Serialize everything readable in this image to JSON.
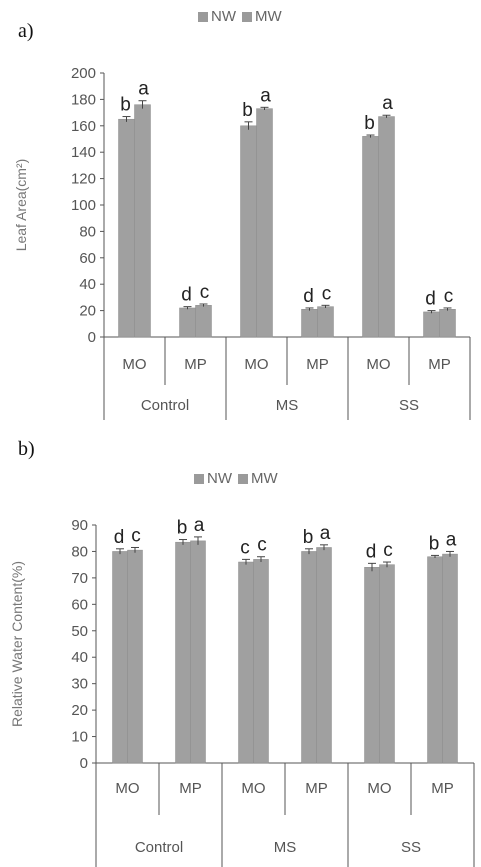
{
  "chart_data": [
    {
      "panel_label": "a)",
      "type": "bar",
      "ylabel": "Leaf Area(cm²)",
      "ylim": [
        0,
        200
      ],
      "yticks": [
        0,
        20,
        40,
        60,
        80,
        100,
        120,
        140,
        160,
        180,
        200
      ],
      "categories": [
        "MO",
        "MP",
        "MO",
        "MP",
        "MO",
        "MP"
      ],
      "groups": [
        "Control",
        "MS",
        "SS"
      ],
      "series": [
        {
          "name": "NW",
          "values": [
            165,
            22,
            160,
            21,
            152,
            19
          ],
          "errors": [
            2,
            1,
            3,
            1,
            1,
            1
          ],
          "letters": [
            "b",
            "d",
            "b",
            "d",
            "b",
            "d"
          ]
        },
        {
          "name": "MW",
          "values": [
            176,
            24,
            173,
            23,
            167,
            21
          ],
          "errors": [
            3,
            1,
            1,
            1,
            1,
            1
          ],
          "letters": [
            "a",
            "c",
            "a",
            "c",
            "a",
            "c"
          ]
        }
      ],
      "color": "#a0a0a0",
      "grid": false,
      "legend_position": "top-center"
    },
    {
      "panel_label": "b)",
      "type": "bar",
      "ylabel": "Relative Water Content(%)",
      "ylim": [
        0,
        90
      ],
      "yticks": [
        0,
        10,
        20,
        30,
        40,
        50,
        60,
        70,
        80,
        90
      ],
      "categories": [
        "MO",
        "MP",
        "MO",
        "MP",
        "MO",
        "MP"
      ],
      "groups": [
        "Control",
        "MS",
        "SS"
      ],
      "series": [
        {
          "name": "NW",
          "values": [
            80,
            83.5,
            76,
            80,
            74,
            78
          ],
          "errors": [
            1,
            1,
            1,
            1,
            1.5,
            0.5
          ],
          "letters": [
            "d",
            "b",
            "c",
            "b",
            "d",
            "b"
          ]
        },
        {
          "name": "MW",
          "values": [
            80.5,
            84,
            77,
            81.5,
            75,
            79
          ],
          "errors": [
            1,
            1.5,
            1,
            1,
            1,
            1
          ],
          "letters": [
            "c",
            "a",
            "c",
            "a",
            "c",
            "a"
          ]
        }
      ],
      "color": "#a0a0a0",
      "grid": false,
      "legend_position": "top-center"
    }
  ]
}
